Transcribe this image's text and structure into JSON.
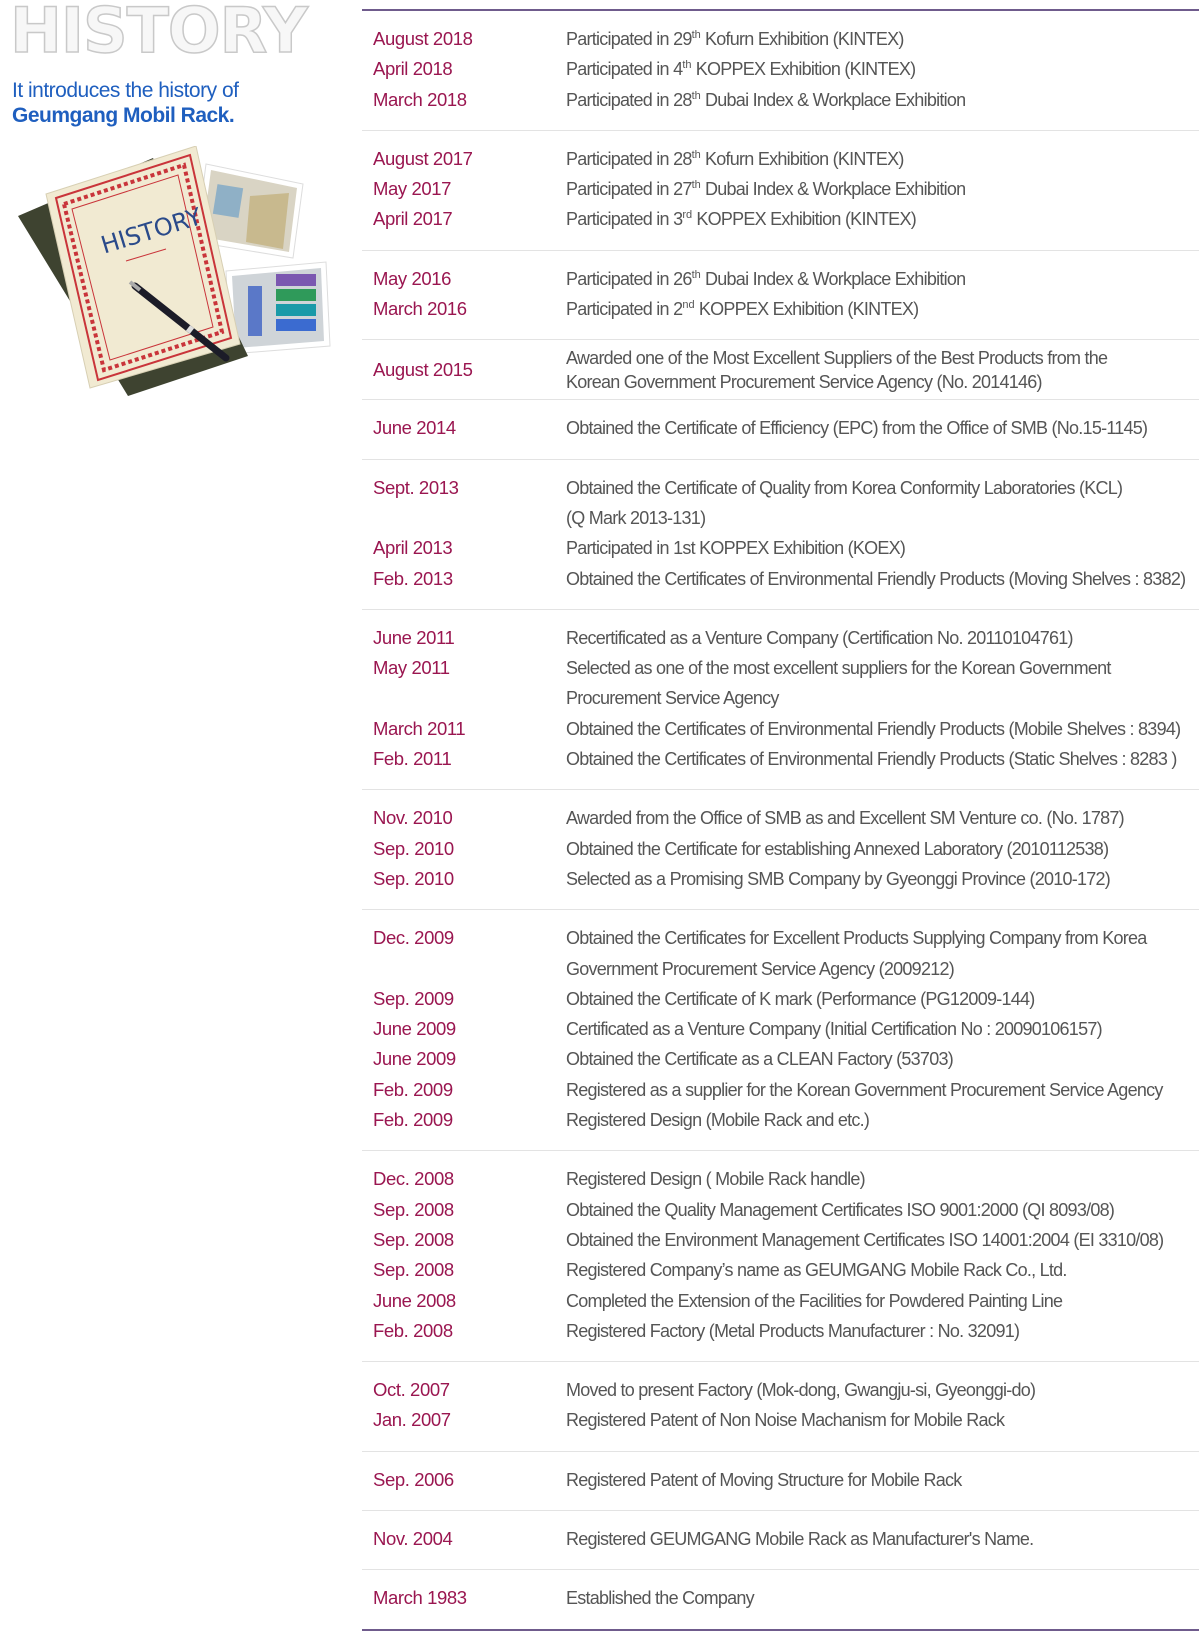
{
  "header": {
    "title": "HISTORY",
    "subtitle_line1": "It introduces the history of",
    "subtitle_line2": "Geumgang Mobil Rack.",
    "illustration_book_text": "HISTORY"
  },
  "colors": {
    "date": "#9a1650",
    "description": "#555555",
    "subtitle": "#1f5fbf",
    "border": "#6f5b8c",
    "separator": "#e3e3e3"
  },
  "groups": [
    {
      "entries": [
        {
          "date": "August 2018",
          "lines": [
            {
              "t": "Participated in 29",
              "sup": "th",
              "t2": " Kofurn Exhibition (KINTEX)"
            }
          ]
        },
        {
          "date": "April 2018",
          "lines": [
            {
              "t": "Participated in 4",
              "sup": "th",
              "t2": " KOPPEX Exhibition (KINTEX)"
            }
          ]
        },
        {
          "date": "March 2018",
          "lines": [
            {
              "t": "Participated in 28",
              "sup": "th",
              "t2": " Dubai Index & Workplace Exhibition"
            }
          ]
        }
      ]
    },
    {
      "entries": [
        {
          "date": "August 2017",
          "lines": [
            {
              "t": "Participated in 28",
              "sup": "th",
              "t2": " Kofurn Exhibition (KINTEX)"
            }
          ]
        },
        {
          "date": "May 2017",
          "lines": [
            {
              "t": "Participated in 27",
              "sup": "th",
              "t2": " Dubai Index & Workplace Exhibition"
            }
          ]
        },
        {
          "date": "April 2017",
          "lines": [
            {
              "t": "Participated in 3",
              "sup": "rd",
              "t2": " KOPPEX Exhibition (KINTEX)"
            }
          ]
        }
      ]
    },
    {
      "entries": [
        {
          "date": "May 2016",
          "lines": [
            {
              "t": "Participated in 26",
              "sup": "th",
              "t2": " Dubai Index & Workplace Exhibition"
            }
          ]
        },
        {
          "date": "March 2016",
          "lines": [
            {
              "t": "Participated in 2",
              "sup": "nd",
              "t2": " KOPPEX Exhibition (KINTEX)"
            }
          ]
        }
      ]
    },
    {
      "entries": [
        {
          "date": "August 2015",
          "lines": [
            {
              "t": "Awarded one of the Most Excellent Suppliers of the Best Products from the"
            },
            {
              "t": "Korean Government Procurement Service Agency (No. 2014146)"
            }
          ]
        }
      ]
    },
    {
      "entries": [
        {
          "date": "June 2014",
          "lines": [
            {
              "t": "Obtained the Certificate of Efficiency (EPC) from the Office of SMB (No.15-1145)"
            }
          ]
        }
      ]
    },
    {
      "entries": [
        {
          "date": "Sept. 2013",
          "lines": [
            {
              "t": "Obtained the Certificate of Quality from Korea Conformity Laboratories (KCL)"
            },
            {
              "t": "(Q Mark 2013-131)"
            }
          ]
        },
        {
          "date": "April 2013",
          "lines": [
            {
              "t": "Participated in 1st KOPPEX Exhibition (KOEX)"
            }
          ]
        },
        {
          "date": "Feb. 2013",
          "lines": [
            {
              "t": "Obtained the Certificates of Environmental Friendly Products (Moving Shelves : 8382)"
            }
          ]
        }
      ]
    },
    {
      "entries": [
        {
          "date": "June 2011",
          "lines": [
            {
              "t": "Recertificated as a Venture Company (Certification No. 20110104761)"
            }
          ]
        },
        {
          "date": "May 2011",
          "lines": [
            {
              "t": "Selected as one of the most excellent suppliers for the Korean Government"
            },
            {
              "t": "Procurement Service Agency"
            }
          ]
        },
        {
          "date": "March 2011",
          "lines": [
            {
              "t": "Obtained the Certificates of Environmental Friendly Products (Mobile Shelves : 8394)"
            }
          ]
        },
        {
          "date": "Feb. 2011",
          "lines": [
            {
              "t": "Obtained the Certificates of Environmental Friendly Products (Static Shelves : 8283 )"
            }
          ]
        }
      ]
    },
    {
      "entries": [
        {
          "date": "Nov. 2010",
          "lines": [
            {
              "t": "Awarded from the Office of SMB as and Excellent SM Venture co. (No. 1787)"
            }
          ]
        },
        {
          "date": "Sep. 2010",
          "lines": [
            {
              "t": "Obtained the Certificate for establishing Annexed Laboratory (2010112538)"
            }
          ]
        },
        {
          "date": "Sep. 2010",
          "lines": [
            {
              "t": "Selected as a Promising SMB Company by Gyeonggi Province (2010-172)"
            }
          ]
        }
      ]
    },
    {
      "entries": [
        {
          "date": "Dec. 2009",
          "lines": [
            {
              "t": "Obtained the Certificates for Excellent Products Supplying Company from Korea"
            },
            {
              "t": "Government Procurement Service Agency  (2009212)"
            }
          ]
        },
        {
          "date": "Sep. 2009",
          "lines": [
            {
              "t": "Obtained the Certificate of K mark (Performance (PG12009-144)"
            }
          ]
        },
        {
          "date": "June 2009",
          "lines": [
            {
              "t": "Certificated as a Venture Company (Initial Certification No : 20090106157)"
            }
          ]
        },
        {
          "date": "June 2009",
          "lines": [
            {
              "t": "Obtained the Certificate as a CLEAN Factory (53703)"
            }
          ]
        },
        {
          "date": "Feb. 2009",
          "lines": [
            {
              "t": "Registered as a supplier for the Korean Government Procurement Service Agency"
            }
          ]
        },
        {
          "date": "Feb. 2009",
          "lines": [
            {
              "t": "Registered Design (Mobile Rack and etc.)"
            }
          ]
        }
      ]
    },
    {
      "entries": [
        {
          "date": "Dec. 2008",
          "lines": [
            {
              "t": "Registered Design ( Mobile Rack handle)"
            }
          ]
        },
        {
          "date": "Sep. 2008",
          "lines": [
            {
              "t": "Obtained the Quality Management Certificates ISO 9001:2000 (QI 8093/08)"
            }
          ]
        },
        {
          "date": "Sep. 2008",
          "lines": [
            {
              "t": "Obtained the Environment Management Certificates ISO 14001:2004 (EI 3310/08)"
            }
          ]
        },
        {
          "date": "Sep. 2008",
          "lines": [
            {
              "t": "Registered Company’s name as GEUMGANG Mobile Rack Co., Ltd."
            }
          ]
        },
        {
          "date": "June 2008",
          "lines": [
            {
              "t": "Completed the Extension of the Facilities for Powdered Painting Line"
            }
          ]
        },
        {
          "date": "Feb.  2008",
          "lines": [
            {
              "t": "Registered Factory (Metal Products Manufacturer : No. 32091)"
            }
          ]
        }
      ]
    },
    {
      "entries": [
        {
          "date": "Oct. 2007",
          "lines": [
            {
              "t": "Moved to present Factory (Mok-dong, Gwangju-si, Gyeonggi-do)"
            }
          ]
        },
        {
          "date": "Jan. 2007",
          "lines": [
            {
              "t": "Registered Patent of Non Noise Machanism for Mobile Rack"
            }
          ]
        }
      ]
    },
    {
      "entries": [
        {
          "date": "Sep. 2006",
          "lines": [
            {
              "t": "Registered Patent of Moving Structure for Mobile Rack"
            }
          ]
        }
      ]
    },
    {
      "entries": [
        {
          "date": "Nov. 2004",
          "lines": [
            {
              "t": "Registered GEUMGANG Mobile Rack as Manufacturer's Name."
            }
          ]
        }
      ]
    },
    {
      "entries": [
        {
          "date": "March 1983",
          "lines": [
            {
              "t": "Established the Company"
            }
          ]
        }
      ]
    }
  ]
}
